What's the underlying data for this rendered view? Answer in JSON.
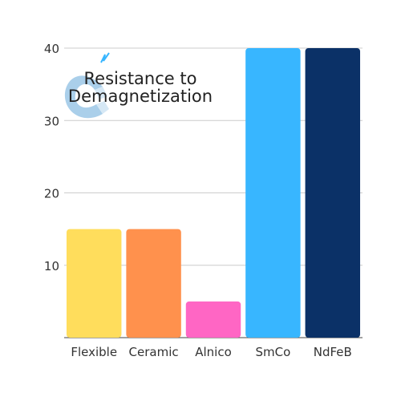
{
  "chart_data": {
    "type": "bar",
    "title_lines": [
      "Resistance to",
      "Demagnetization"
    ],
    "categories": [
      "Flexible",
      "Ceramic",
      "Alnico",
      "SmCo",
      "NdFeB"
    ],
    "values": [
      15,
      15,
      5,
      40,
      40
    ],
    "colors": [
      "#FFDD5C",
      "#FF914D",
      "#FF66C4",
      "#38B6FF",
      "#0B3167"
    ],
    "y_ticks": [
      10,
      20,
      30,
      40
    ],
    "ylim": [
      0,
      40
    ],
    "xlabel": "",
    "ylabel": "",
    "grid": true,
    "grid_color": "#cccccc",
    "icon_name": "magnet-icon",
    "icon_color": "#9BC7E6"
  }
}
